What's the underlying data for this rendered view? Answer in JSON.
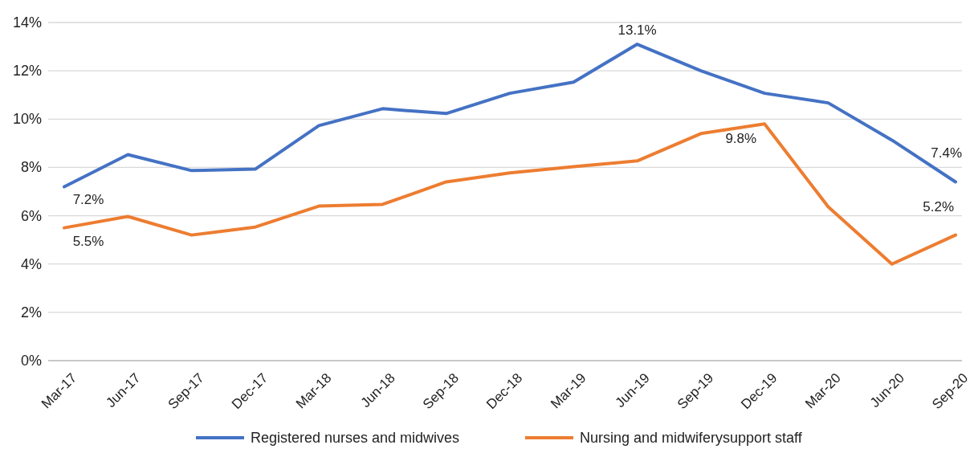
{
  "chart_data": {
    "type": "line",
    "categories": [
      "Mar-17",
      "Jun-17",
      "Sep-17",
      "Dec-17",
      "Mar-18",
      "Jun-18",
      "Sep-18",
      "Dec-18",
      "Mar-19",
      "Jun-19",
      "Sep-19",
      "Dec-19",
      "Mar-20",
      "Jun-20",
      "Sep-20"
    ],
    "series": [
      {
        "name": "Registered nurses and midwives",
        "color": "#4472c4",
        "values": [
          7.2,
          8.53,
          7.87,
          7.93,
          9.73,
          10.43,
          10.23,
          11.07,
          11.53,
          13.1,
          12.0,
          11.07,
          10.67,
          9.13,
          7.4
        ],
        "value_labels": [
          "7.2%",
          null,
          null,
          null,
          null,
          null,
          null,
          null,
          null,
          "13.1%",
          null,
          null,
          null,
          null,
          "7.4%"
        ]
      },
      {
        "name": "Nursing and midwiferysupport staff",
        "color": "#ed7d31",
        "values": [
          5.5,
          5.97,
          5.2,
          5.53,
          6.4,
          6.47,
          7.4,
          7.77,
          8.03,
          8.27,
          9.4,
          9.8,
          6.37,
          4.0,
          5.2
        ],
        "value_labels": [
          "5.5%",
          null,
          null,
          null,
          null,
          null,
          null,
          null,
          null,
          null,
          null,
          "9.8%",
          null,
          null,
          "5.2%"
        ]
      }
    ],
    "ylim": [
      0,
      14
    ],
    "yticks": [
      {
        "value": 0,
        "label": "0%"
      },
      {
        "value": 2,
        "label": "2%"
      },
      {
        "value": 4,
        "label": "4%"
      },
      {
        "value": 6,
        "label": "6%"
      },
      {
        "value": 8,
        "label": "8%"
      },
      {
        "value": 10,
        "label": "10%"
      },
      {
        "value": 12,
        "label": "12%"
      },
      {
        "value": 14,
        "label": "14%"
      }
    ],
    "grid": "y",
    "legend": "bottom",
    "marker": "none",
    "line_style": "solid"
  }
}
